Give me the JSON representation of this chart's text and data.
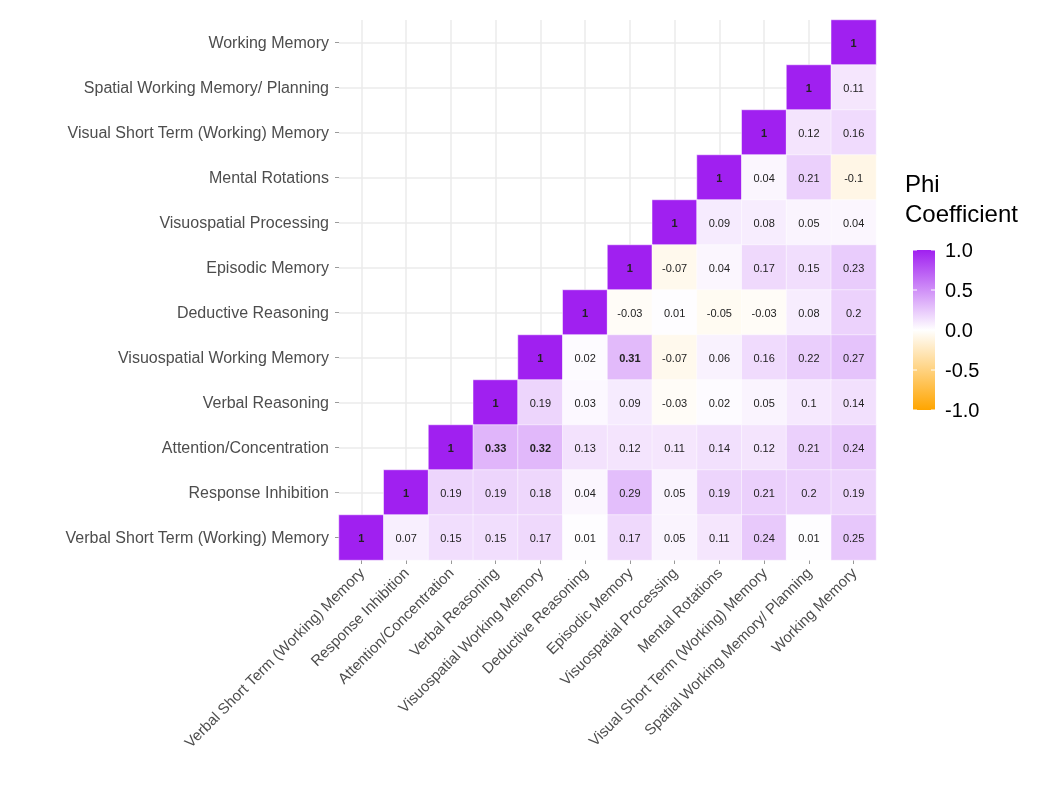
{
  "chart_data": {
    "type": "heatmap",
    "clabel": "Phi Coefficient",
    "grid": true,
    "data_labels": true,
    "categories": [
      "Verbal Short Term (Working) Memory",
      "Response Inhibition",
      "Attention/Concentration",
      "Verbal Reasoning",
      "Visuospatial Working Memory",
      "Deductive Reasoning",
      "Episodic Memory",
      "Visuospatial Processing",
      "Mental Rotations",
      "Visual Short Term (Working) Memory",
      "Spatial Working Memory/ Planning",
      "Working Memory"
    ],
    "y_categories": [
      "Working Memory",
      "Spatial Working Memory/ Planning",
      "Visual Short Term (Working) Memory",
      "Mental Rotations",
      "Visuospatial Processing",
      "Episodic Memory",
      "Deductive Reasoning",
      "Visuospatial Working Memory",
      "Verbal Reasoning",
      "Attention/Concentration",
      "Response Inhibition",
      "Verbal Short Term (Working) Memory"
    ],
    "cells": [
      [
        null,
        null,
        null,
        null,
        null,
        null,
        null,
        null,
        null,
        null,
        null,
        1
      ],
      [
        null,
        null,
        null,
        null,
        null,
        null,
        null,
        null,
        null,
        null,
        1,
        0.11
      ],
      [
        null,
        null,
        null,
        null,
        null,
        null,
        null,
        null,
        null,
        1,
        0.12,
        0.16
      ],
      [
        null,
        null,
        null,
        null,
        null,
        null,
        null,
        null,
        1,
        0.04,
        0.21,
        -0.1
      ],
      [
        null,
        null,
        null,
        null,
        null,
        null,
        null,
        1,
        0.09,
        0.08,
        0.05,
        0.04
      ],
      [
        null,
        null,
        null,
        null,
        null,
        null,
        1,
        -0.07,
        0.04,
        0.17,
        0.15,
        0.23
      ],
      [
        null,
        null,
        null,
        null,
        null,
        1,
        -0.03,
        0.01,
        -0.05,
        -0.03,
        0.08,
        0.2
      ],
      [
        null,
        null,
        null,
        null,
        1,
        0.02,
        0.31,
        -0.07,
        0.06,
        0.16,
        0.22,
        0.27
      ],
      [
        null,
        null,
        null,
        1,
        0.19,
        0.03,
        0.09,
        -0.03,
        0.02,
        0.05,
        0.1,
        0.14
      ],
      [
        null,
        null,
        1,
        0.33,
        0.32,
        0.13,
        0.12,
        0.11,
        0.14,
        0.12,
        0.21,
        0.24
      ],
      [
        null,
        1,
        0.19,
        0.19,
        0.18,
        0.04,
        0.29,
        0.05,
        0.19,
        0.21,
        0.2,
        0.19
      ],
      [
        1,
        0.07,
        0.15,
        0.15,
        0.17,
        0.01,
        0.17,
        0.05,
        0.11,
        0.24,
        0.01,
        0.25
      ]
    ],
    "clim": [
      -1,
      1
    ],
    "cticks": [
      {
        "value": 1,
        "label": "1.0"
      },
      {
        "value": 0.5,
        "label": "0.5"
      },
      {
        "value": 0,
        "label": "0.0"
      },
      {
        "value": -0.5,
        "label": "-0.5"
      },
      {
        "value": -1,
        "label": "-1.0"
      }
    ]
  }
}
